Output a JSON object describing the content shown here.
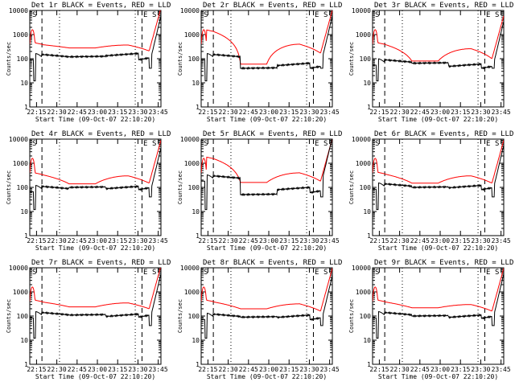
{
  "colors": {
    "events": "#000000",
    "lld": "#ff0000",
    "axis": "#000000",
    "background": "#ffffff"
  },
  "chart_data": [
    {
      "type": "line",
      "title": "Det 1r BLACK = Events, RED = LLD",
      "xlabel": "Start Time (09-Oct-07 22:10:20)",
      "ylabel": "Counts/sec",
      "yscale": "log",
      "ylim": [
        1,
        10000
      ],
      "xlim": [
        "22:10",
        "23:47"
      ],
      "xticks": [
        "22:15",
        "22:30",
        "22:45",
        "23:00",
        "23:15",
        "23:30",
        "23:45"
      ],
      "yticks": [
        "1",
        "10",
        "100",
        "1000",
        "10000"
      ],
      "corner_labels": [
        "S",
        "E",
        "S"
      ],
      "dashed_lines": [
        "22:19",
        "23:33"
      ],
      "dotted_lines": [
        "22:32",
        "23:28"
      ],
      "events_levels": [
        150,
        120,
        165,
        90
      ],
      "lld_levels": [
        380,
        280,
        370,
        210
      ]
    },
    {
      "type": "line",
      "title": "Det 2r BLACK = Events, RED = LLD",
      "xlabel": "Start Time (09-Oct-07 22:10:20)",
      "ylabel": "Counts/sec",
      "yscale": "log",
      "ylim": [
        1,
        10000
      ],
      "xlim": [
        "22:10",
        "23:47"
      ],
      "xticks": [
        "22:15",
        "22:30",
        "22:45",
        "23:00",
        "23:15",
        "23:30",
        "23:45"
      ],
      "yticks": [
        "1",
        "10",
        "100",
        "1000",
        "10000"
      ],
      "corner_labels": [
        "S",
        "E",
        "S"
      ],
      "dashed_lines": [
        "22:19",
        "23:33"
      ],
      "dotted_lines": [
        "22:32",
        "23:28"
      ],
      "events_levels": [
        150,
        40,
        65,
        40
      ],
      "lld_levels": [
        1300,
        60,
        400,
        170
      ]
    },
    {
      "type": "line",
      "title": "Det 3r BLACK = Events, RED = LLD",
      "xlabel": "Start Time (09-Oct-07 22:10:20)",
      "ylabel": "Counts/sec",
      "yscale": "log",
      "ylim": [
        1,
        10000
      ],
      "xlim": [
        "22:10",
        "23:47"
      ],
      "xticks": [
        "22:15",
        "22:30",
        "22:45",
        "23:00",
        "23:15",
        "23:30",
        "23:45"
      ],
      "yticks": [
        "1",
        "10",
        "100",
        "1000",
        "10000"
      ],
      "corner_labels": [
        "S",
        "E",
        "S"
      ],
      "dashed_lines": [
        "22:19",
        "23:33"
      ],
      "dotted_lines": [
        "22:32",
        "23:28"
      ],
      "events_levels": [
        90,
        65,
        60,
        40
      ],
      "lld_levels": [
        380,
        80,
        260,
        100
      ]
    },
    {
      "type": "line",
      "title": "Det 4r BLACK = Events, RED = LLD",
      "xlabel": "Start Time (09-Oct-07 22:10:20)",
      "ylabel": "Counts/sec",
      "yscale": "log",
      "ylim": [
        1,
        10000
      ],
      "xlim": [
        "22:10",
        "23:47"
      ],
      "xticks": [
        "22:15",
        "22:30",
        "22:45",
        "23:00",
        "23:15",
        "23:30",
        "23:45"
      ],
      "yticks": [
        "1",
        "10",
        "100",
        "1000",
        "10000"
      ],
      "corner_labels": [
        "S",
        "E",
        "S"
      ],
      "dashed_lines": [
        "22:19",
        "23:33"
      ],
      "dotted_lines": [
        "22:32",
        "23:28"
      ],
      "events_levels": [
        110,
        100,
        110,
        80
      ],
      "lld_levels": [
        330,
        140,
        300,
        150
      ]
    },
    {
      "type": "line",
      "title": "Det 5r BLACK = Events, RED = LLD",
      "xlabel": "Start Time (09-Oct-07 22:10:20)",
      "ylabel": "Counts/sec",
      "yscale": "log",
      "ylim": [
        1,
        10000
      ],
      "xlim": [
        "22:10",
        "23:47"
      ],
      "xticks": [
        "22:15",
        "22:30",
        "22:45",
        "23:00",
        "23:15",
        "23:30",
        "23:45"
      ],
      "yticks": [
        "1",
        "10",
        "100",
        "1000",
        "10000"
      ],
      "corner_labels": [
        "S",
        "E",
        "S"
      ],
      "dashed_lines": [
        "22:19",
        "23:33"
      ],
      "dotted_lines": [
        "22:32",
        "23:28"
      ],
      "events_levels": [
        300,
        50,
        100,
        60
      ],
      "lld_levels": [
        1500,
        160,
        400,
        180
      ]
    },
    {
      "type": "line",
      "title": "Det 6r BLACK = Events, RED = LLD",
      "xlabel": "Start Time (09-Oct-07 22:10:20)",
      "ylabel": "Counts/sec",
      "yscale": "log",
      "ylim": [
        1,
        10000
      ],
      "xlim": [
        "22:10",
        "23:47"
      ],
      "xticks": [
        "22:15",
        "22:30",
        "22:45",
        "23:00",
        "23:15",
        "23:30",
        "23:45"
      ],
      "yticks": [
        "1",
        "10",
        "100",
        "1000",
        "10000"
      ],
      "corner_labels": [
        "S",
        "E",
        "S"
      ],
      "dashed_lines": [
        "22:19",
        "23:33"
      ],
      "dotted_lines": [
        "22:32",
        "23:28"
      ],
      "events_levels": [
        140,
        100,
        120,
        80
      ],
      "lld_levels": [
        350,
        150,
        300,
        150
      ]
    },
    {
      "type": "line",
      "title": "Det 7r BLACK = Events, RED = LLD",
      "xlabel": "Start Time (09-Oct-07 22:10:20)",
      "ylabel": "Counts/sec",
      "yscale": "log",
      "ylim": [
        1,
        10000
      ],
      "xlim": [
        "22:10",
        "23:47"
      ],
      "xticks": [
        "22:15",
        "22:30",
        "22:45",
        "23:00",
        "23:15",
        "23:30",
        "23:45"
      ],
      "yticks": [
        "1",
        "10",
        "100",
        "1000",
        "10000"
      ],
      "corner_labels": [
        "S",
        "E",
        "S"
      ],
      "dashed_lines": [
        "22:19",
        "23:33"
      ],
      "dotted_lines": [
        "22:32",
        "23:28"
      ],
      "events_levels": [
        140,
        110,
        120,
        90
      ],
      "lld_levels": [
        380,
        240,
        350,
        200
      ]
    },
    {
      "type": "line",
      "title": "Det 8r BLACK = Events, RED = LLD",
      "xlabel": "Start Time (09-Oct-07 22:10:20)",
      "ylabel": "Counts/sec",
      "yscale": "log",
      "ylim": [
        1,
        10000
      ],
      "xlim": [
        "22:10",
        "23:47"
      ],
      "xticks": [
        "22:15",
        "22:30",
        "22:45",
        "23:00",
        "23:15",
        "23:30",
        "23:45"
      ],
      "yticks": [
        "1",
        "10",
        "100",
        "1000",
        "10000"
      ],
      "corner_labels": [
        "S",
        "E",
        "S"
      ],
      "dashed_lines": [
        "22:19",
        "23:33"
      ],
      "dotted_lines": [
        "22:32",
        "23:28"
      ],
      "events_levels": [
        120,
        90,
        110,
        70
      ],
      "lld_levels": [
        380,
        200,
        320,
        160
      ]
    },
    {
      "type": "line",
      "title": "Det 9r BLACK = Events, RED = LLD",
      "xlabel": "Start Time (09-Oct-07 22:10:20)",
      "ylabel": "Counts/sec",
      "yscale": "log",
      "ylim": [
        1,
        10000
      ],
      "xlim": [
        "22:10",
        "23:47"
      ],
      "xticks": [
        "22:15",
        "22:30",
        "22:45",
        "23:00",
        "23:15",
        "23:30",
        "23:45"
      ],
      "yticks": [
        "1",
        "10",
        "100",
        "1000",
        "10000"
      ],
      "corner_labels": [
        "S",
        "E",
        "S"
      ],
      "dashed_lines": [
        "22:19",
        "23:33"
      ],
      "dotted_lines": [
        "22:32",
        "23:28"
      ],
      "events_levels": [
        140,
        100,
        110,
        80
      ],
      "lld_levels": [
        380,
        220,
        300,
        160
      ]
    }
  ]
}
